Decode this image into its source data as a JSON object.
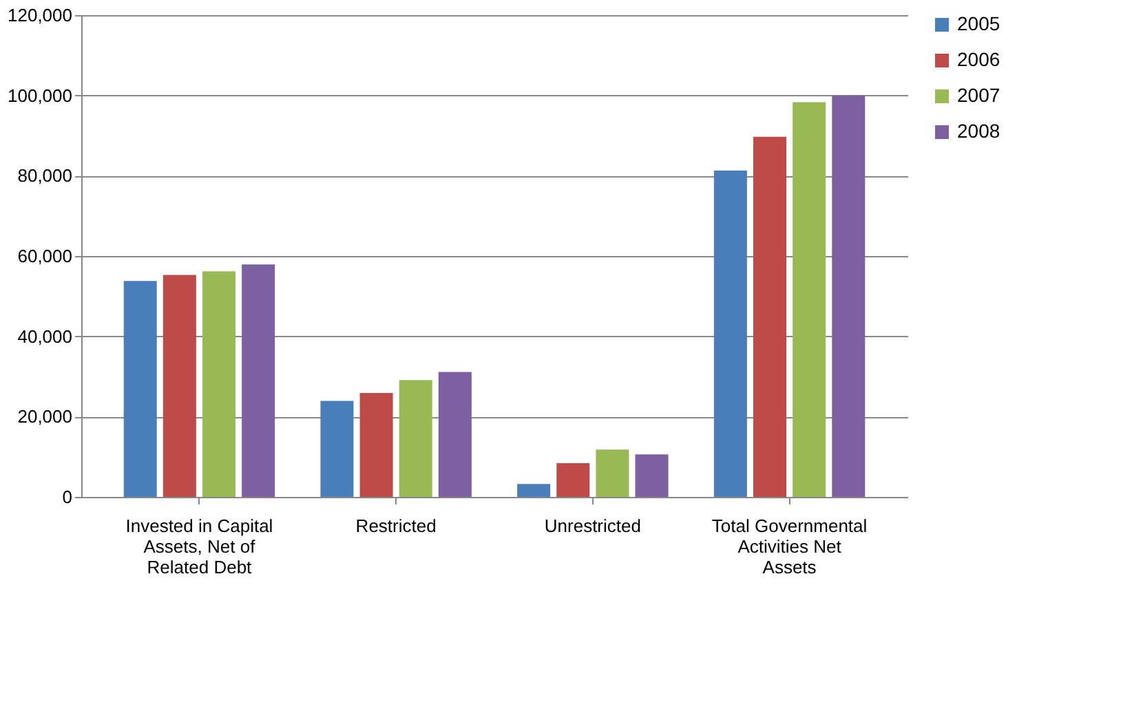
{
  "chart_data": {
    "type": "bar",
    "categories": [
      "Invested in Capital Assets, Net of Related Debt",
      "Restricted",
      "Unrestricted",
      "Total Governmental Activities Net Assets"
    ],
    "series": [
      {
        "name": "2005",
        "color": "#4a7ebb",
        "values": [
          53800,
          23900,
          3200,
          81300
        ]
      },
      {
        "name": "2006",
        "color": "#be4b48",
        "values": [
          55300,
          25900,
          8400,
          89700
        ]
      },
      {
        "name": "2007",
        "color": "#98b954",
        "values": [
          56200,
          29100,
          11800,
          98300
        ]
      },
      {
        "name": "2008",
        "color": "#7d60a0",
        "values": [
          57900,
          31100,
          10600,
          100000
        ]
      }
    ],
    "ylim": [
      0,
      120000
    ],
    "yticks": [
      0,
      {
        "value": 20000,
        "label": "20,000"
      },
      {
        "value": 40000,
        "label": "40,000"
      },
      {
        "value": 60000,
        "label": "60,000"
      },
      {
        "value": 80000,
        "label": "80,000"
      },
      {
        "value": 100000,
        "label": "100,000"
      },
      {
        "value": 120000,
        "label": "120,000"
      }
    ],
    "grid": "y",
    "legend": "right"
  }
}
